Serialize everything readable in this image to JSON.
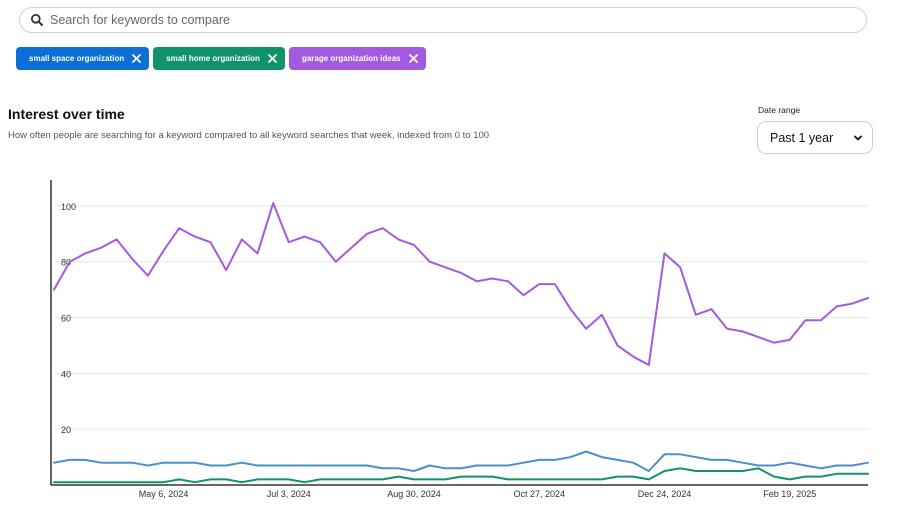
{
  "search": {
    "placeholder": "Search for keywords to compare"
  },
  "chips": [
    {
      "label": "small space organization",
      "color": "#0b6fd6"
    },
    {
      "label": "small home organization",
      "color": "#10926b"
    },
    {
      "label": "garage organization ideas",
      "color": "#a45ae0"
    }
  ],
  "header": {
    "title": "Interest over time",
    "subtitle": "How often people are searching for a keyword compared to all keyword searches that week, indexed from 0 to 100"
  },
  "date_range": {
    "label": "Date range",
    "value": "Past 1 year"
  },
  "chart_data": {
    "type": "line",
    "ylim": [
      0,
      110
    ],
    "yticks": [
      20,
      40,
      60,
      80,
      100
    ],
    "xlabels": [
      "May 6, 2024",
      "Jul 3, 2024",
      "Aug 30, 2024",
      "Oct 27, 2024",
      "Dec 24, 2024",
      "Feb 19, 2025"
    ],
    "xlabel_indices": [
      7,
      15,
      23,
      31,
      39,
      47
    ],
    "grid": true,
    "series": [
      {
        "color": "#a45ae0",
        "values": [
          70,
          80,
          83,
          85,
          88,
          81,
          75,
          84,
          92,
          89,
          87,
          77,
          88,
          83,
          101,
          87,
          89,
          87,
          80,
          85,
          90,
          92,
          88,
          86,
          80,
          78,
          76,
          73,
          74,
          73,
          68,
          72,
          72,
          63,
          56,
          61,
          50,
          46,
          43,
          83,
          78,
          61,
          63,
          56,
          55,
          53,
          51,
          52,
          59,
          59,
          64,
          65,
          67
        ]
      },
      {
        "color": "#4a8fcd",
        "values": [
          8,
          9,
          9,
          8,
          8,
          8,
          7,
          8,
          8,
          8,
          7,
          7,
          8,
          7,
          7,
          7,
          7,
          7,
          7,
          7,
          7,
          6,
          6,
          5,
          7,
          6,
          6,
          7,
          7,
          7,
          8,
          9,
          9,
          10,
          12,
          10,
          9,
          8,
          5,
          11,
          11,
          10,
          9,
          9,
          8,
          7,
          7,
          8,
          7,
          6,
          7,
          7,
          8
        ]
      },
      {
        "color": "#10926b",
        "values": [
          1,
          1,
          1,
          1,
          1,
          1,
          1,
          1,
          2,
          1,
          2,
          2,
          1,
          2,
          2,
          2,
          1,
          2,
          2,
          2,
          2,
          2,
          3,
          2,
          2,
          2,
          3,
          3,
          3,
          2,
          2,
          2,
          2,
          2,
          2,
          2,
          3,
          3,
          2,
          5,
          6,
          5,
          5,
          5,
          5,
          6,
          3,
          2,
          3,
          3,
          4,
          4,
          4
        ]
      }
    ]
  }
}
